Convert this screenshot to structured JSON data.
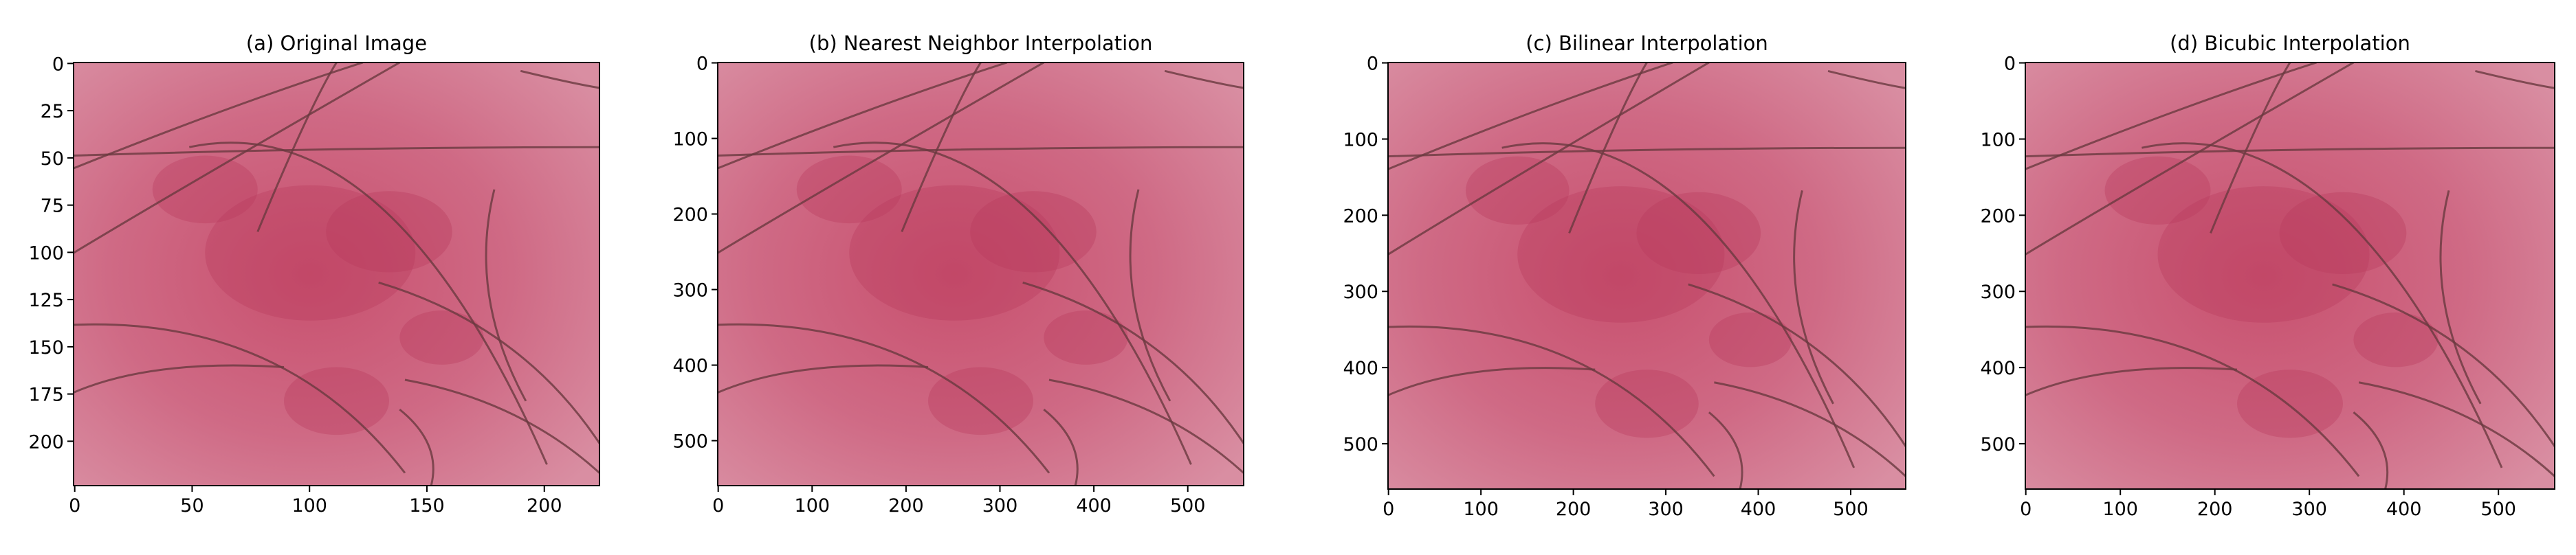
{
  "chart_data": [
    {
      "type": "image",
      "title": "(a) Original Image",
      "xlim": [
        -0.5,
        223.5
      ],
      "ylim": [
        223.5,
        -0.5
      ],
      "xticks": [
        0,
        50,
        100,
        150,
        200
      ],
      "yticks": [
        0,
        25,
        50,
        75,
        100,
        125,
        150,
        175,
        200
      ]
    },
    {
      "type": "image",
      "title": "(b) Nearest Neighbor Interpolation",
      "xlim": [
        -0.5,
        559.5
      ],
      "ylim": [
        559.5,
        -0.5
      ],
      "xticks": [
        0,
        100,
        200,
        300,
        400,
        500
      ],
      "yticks": [
        0,
        100,
        200,
        300,
        400,
        500
      ]
    },
    {
      "type": "image",
      "title": "(c) Bilinear Interpolation",
      "xlim": [
        -0.5,
        559.5
      ],
      "ylim": [
        559.5,
        -0.5
      ],
      "xticks": [
        0,
        100,
        200,
        300,
        400,
        500
      ],
      "yticks": [
        0,
        100,
        200,
        300,
        400,
        500
      ]
    },
    {
      "type": "image",
      "title": "(d) Bicubic Interpolation",
      "xlim": [
        -0.5,
        559.5
      ],
      "ylim": [
        559.5,
        -0.5
      ],
      "xticks": [
        0,
        100,
        200,
        300,
        400,
        500
      ],
      "yticks": [
        0,
        100,
        200,
        300,
        400,
        500
      ]
    }
  ]
}
